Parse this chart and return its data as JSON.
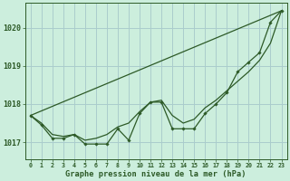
{
  "title": "Graphe pression niveau de la mer (hPa)",
  "bg_color": "#cceedd",
  "grid_color": "#aacccc",
  "line_color": "#2d5a27",
  "xlim": [
    -0.5,
    23.5
  ],
  "ylim": [
    1016.55,
    1020.65
  ],
  "yticks": [
    1017,
    1018,
    1019,
    1020
  ],
  "xtick_labels": [
    "0",
    "1",
    "2",
    "3",
    "4",
    "5",
    "6",
    "7",
    "8",
    "9",
    "10",
    "11",
    "12",
    "13",
    "14",
    "15",
    "16",
    "17",
    "18",
    "19",
    "20",
    "21",
    "22",
    "23"
  ],
  "series_detail": {
    "x": [
      0,
      1,
      2,
      3,
      4,
      5,
      6,
      7,
      8,
      9,
      10,
      11,
      12,
      13,
      14,
      15,
      16,
      17,
      18,
      19,
      20,
      21,
      22,
      23
    ],
    "y": [
      1017.7,
      1017.45,
      1017.1,
      1017.1,
      1017.2,
      1016.95,
      1016.95,
      1016.95,
      1017.35,
      1017.05,
      1017.75,
      1018.05,
      1018.05,
      1017.35,
      1017.35,
      1017.35,
      1017.75,
      1018.0,
      1018.3,
      1018.85,
      1019.1,
      1019.35,
      1020.15,
      1020.45
    ]
  },
  "series_straight": {
    "x": [
      0,
      23
    ],
    "y": [
      1017.7,
      1020.45
    ]
  },
  "series_envelope": {
    "x": [
      0,
      1,
      2,
      3,
      4,
      5,
      6,
      7,
      8,
      9,
      10,
      11,
      12,
      13,
      14,
      15,
      16,
      17,
      18,
      19,
      20,
      21,
      22,
      23
    ],
    "y": [
      1017.7,
      1017.5,
      1017.2,
      1017.15,
      1017.2,
      1017.05,
      1017.1,
      1017.2,
      1017.4,
      1017.5,
      1017.8,
      1018.05,
      1018.1,
      1017.7,
      1017.5,
      1017.6,
      1017.9,
      1018.1,
      1018.35,
      1018.6,
      1018.85,
      1019.15,
      1019.6,
      1020.45
    ]
  }
}
